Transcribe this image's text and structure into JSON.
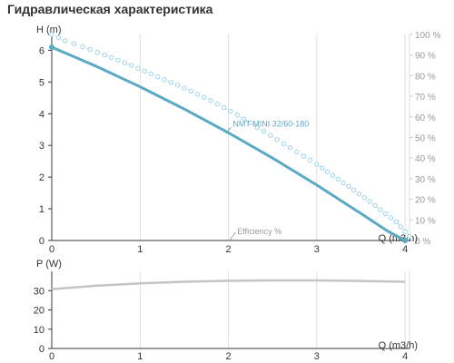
{
  "page": {
    "title": "Гидравлическая характеристика"
  },
  "colors": {
    "curve": "#5aaac4",
    "efficiency": "#9fd3e6",
    "power": "#c4c4c4",
    "grid": "#dedede",
    "axis": "#3a3a3a"
  },
  "chart_data": [
    {
      "type": "line",
      "ylabel": "H (m)",
      "xlabel": "Q (m3/h)",
      "y2label": "",
      "xlim": [
        0,
        4.05
      ],
      "ylim": [
        0,
        6.5
      ],
      "y2lim": [
        0,
        100
      ],
      "xticks": [
        0,
        1,
        2,
        3,
        4
      ],
      "yticks": [
        0,
        1,
        2,
        3,
        4,
        5,
        6
      ],
      "y2ticks": [
        "0 %",
        "10 %",
        "20 %",
        "30 %",
        "40 %",
        "50 %",
        "60 %",
        "70 %",
        "80 %",
        "90 %",
        "100 %"
      ],
      "grid": true,
      "series": [
        {
          "name": "NMT MINI 32/60-180",
          "x": [
            0,
            0.5,
            1,
            1.5,
            2,
            2.5,
            3,
            3.5,
            3.8,
            4.0
          ],
          "values": [
            6.1,
            5.5,
            4.85,
            4.15,
            3.4,
            2.6,
            1.75,
            0.85,
            0.3,
            0.0
          ]
        },
        {
          "name": "Efficiency %",
          "axis": "y2",
          "x": [
            0.0,
            0.15,
            0.35,
            0.6,
            0.9,
            1.2,
            1.5,
            1.8,
            2.1,
            2.4,
            2.7,
            3.0,
            3.3,
            3.6,
            3.9,
            4.05
          ],
          "values": [
            100,
            97,
            94,
            90,
            85,
            79.5,
            74,
            68,
            61,
            53,
            45,
            37,
            28,
            19,
            9,
            2
          ]
        }
      ],
      "annotations": [
        {
          "text": "NMT MINI 32/60-180",
          "x": 2.05,
          "y": 3.6
        },
        {
          "text": "Efficiency %",
          "x": 2.1,
          "y": 0.2
        }
      ]
    },
    {
      "type": "line",
      "ylabel": "P (W)",
      "xlabel": "Q (m3/h)",
      "xlim": [
        0,
        4.05
      ],
      "ylim": [
        0,
        40
      ],
      "xticks": [
        0,
        1,
        2,
        3,
        4
      ],
      "yticks": [
        0,
        10,
        20,
        30
      ],
      "grid": true,
      "series": [
        {
          "name": "P",
          "x": [
            0,
            0.5,
            1,
            1.5,
            2,
            2.5,
            3,
            3.5,
            4.0
          ],
          "values": [
            30.8,
            32.5,
            33.8,
            34.6,
            35.1,
            35.3,
            35.3,
            35.0,
            34.6
          ]
        }
      ]
    }
  ]
}
